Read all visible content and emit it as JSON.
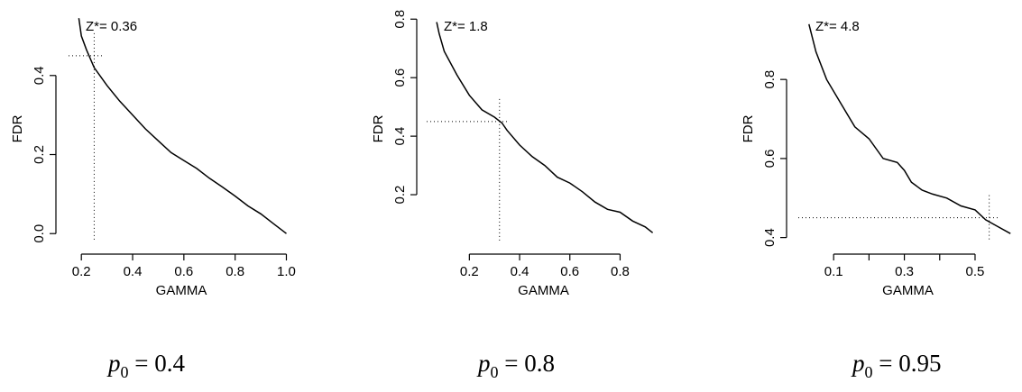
{
  "chart_data": [
    {
      "type": "line",
      "annotation": "Z*= 0.36",
      "xlabel": "GAMMA",
      "ylabel": "FDR",
      "xlim": [
        0.15,
        1.03
      ],
      "ylim": [
        -0.02,
        0.55
      ],
      "xticks": [
        0.2,
        0.4,
        0.6,
        0.8,
        1.0
      ],
      "xtick_labels": [
        "0.2",
        "0.4",
        "0.6",
        "0.8",
        "1.0"
      ],
      "yticks": [
        0.0,
        0.2,
        0.4
      ],
      "ytick_labels": [
        "0.0",
        "0.2",
        "0.4"
      ],
      "x": [
        0.19,
        0.2,
        0.22,
        0.25,
        0.3,
        0.35,
        0.4,
        0.45,
        0.5,
        0.55,
        0.6,
        0.65,
        0.7,
        0.75,
        0.8,
        0.85,
        0.9,
        0.95,
        0.98,
        1.0
      ],
      "y": [
        0.545,
        0.5,
        0.465,
        0.42,
        0.375,
        0.335,
        0.3,
        0.265,
        0.235,
        0.205,
        0.185,
        0.165,
        0.14,
        0.118,
        0.095,
        0.07,
        0.05,
        0.025,
        0.01,
        0.0
      ],
      "reference": {
        "x": 0.25,
        "y": 0.45
      },
      "caption": {
        "base": "p",
        "sub": "0",
        "rest": " = 0.4"
      }
    },
    {
      "type": "line",
      "annotation": "Z*= 1.8",
      "xlabel": "GAMMA",
      "ylabel": "FDR",
      "xlim": [
        0.03,
        0.96
      ],
      "ylim": [
        0.04,
        0.81
      ],
      "xticks": [
        0.2,
        0.4,
        0.6,
        0.8
      ],
      "xtick_labels": [
        "0.2",
        "0.4",
        "0.6",
        "0.8"
      ],
      "yticks": [
        0.2,
        0.4,
        0.6,
        0.8
      ],
      "ytick_labels": [
        "0.2",
        "0.4",
        "0.6",
        "0.8"
      ],
      "x": [
        0.07,
        0.08,
        0.1,
        0.15,
        0.2,
        0.25,
        0.3,
        0.33,
        0.35,
        0.4,
        0.45,
        0.5,
        0.55,
        0.6,
        0.65,
        0.7,
        0.75,
        0.8,
        0.85,
        0.9,
        0.93
      ],
      "y": [
        0.79,
        0.75,
        0.69,
        0.61,
        0.54,
        0.49,
        0.465,
        0.445,
        0.42,
        0.37,
        0.33,
        0.3,
        0.26,
        0.24,
        0.21,
        0.175,
        0.15,
        0.14,
        0.11,
        0.09,
        0.07
      ],
      "reference": {
        "x": 0.32,
        "y": 0.45
      },
      "caption": {
        "base": "p",
        "sub": "0",
        "rest": " = 0.8"
      }
    },
    {
      "type": "line",
      "annotation": "Z*= 4.8",
      "xlabel": "GAMMA",
      "ylabel": "FDR",
      "xlim": [
        0.0,
        0.62
      ],
      "ylim": [
        0.39,
        0.96
      ],
      "xticks": [
        0.1,
        0.2,
        0.3,
        0.4,
        0.5
      ],
      "xtick_labels": [
        "0.1",
        "",
        "0.3",
        "",
        "0.5"
      ],
      "yticks": [
        0.4,
        0.6,
        0.8
      ],
      "ytick_labels": [
        "0.4",
        "0.6",
        "0.8"
      ],
      "x": [
        0.03,
        0.05,
        0.08,
        0.12,
        0.16,
        0.2,
        0.24,
        0.28,
        0.3,
        0.32,
        0.35,
        0.38,
        0.42,
        0.46,
        0.5,
        0.53,
        0.56,
        0.6
      ],
      "y": [
        0.94,
        0.87,
        0.8,
        0.74,
        0.68,
        0.65,
        0.6,
        0.59,
        0.57,
        0.54,
        0.52,
        0.51,
        0.5,
        0.48,
        0.47,
        0.445,
        0.43,
        0.41
      ],
      "reference": {
        "x": 0.54,
        "y": 0.45
      },
      "caption": {
        "base": "p",
        "sub": "0",
        "rest": " = 0.95"
      }
    }
  ]
}
